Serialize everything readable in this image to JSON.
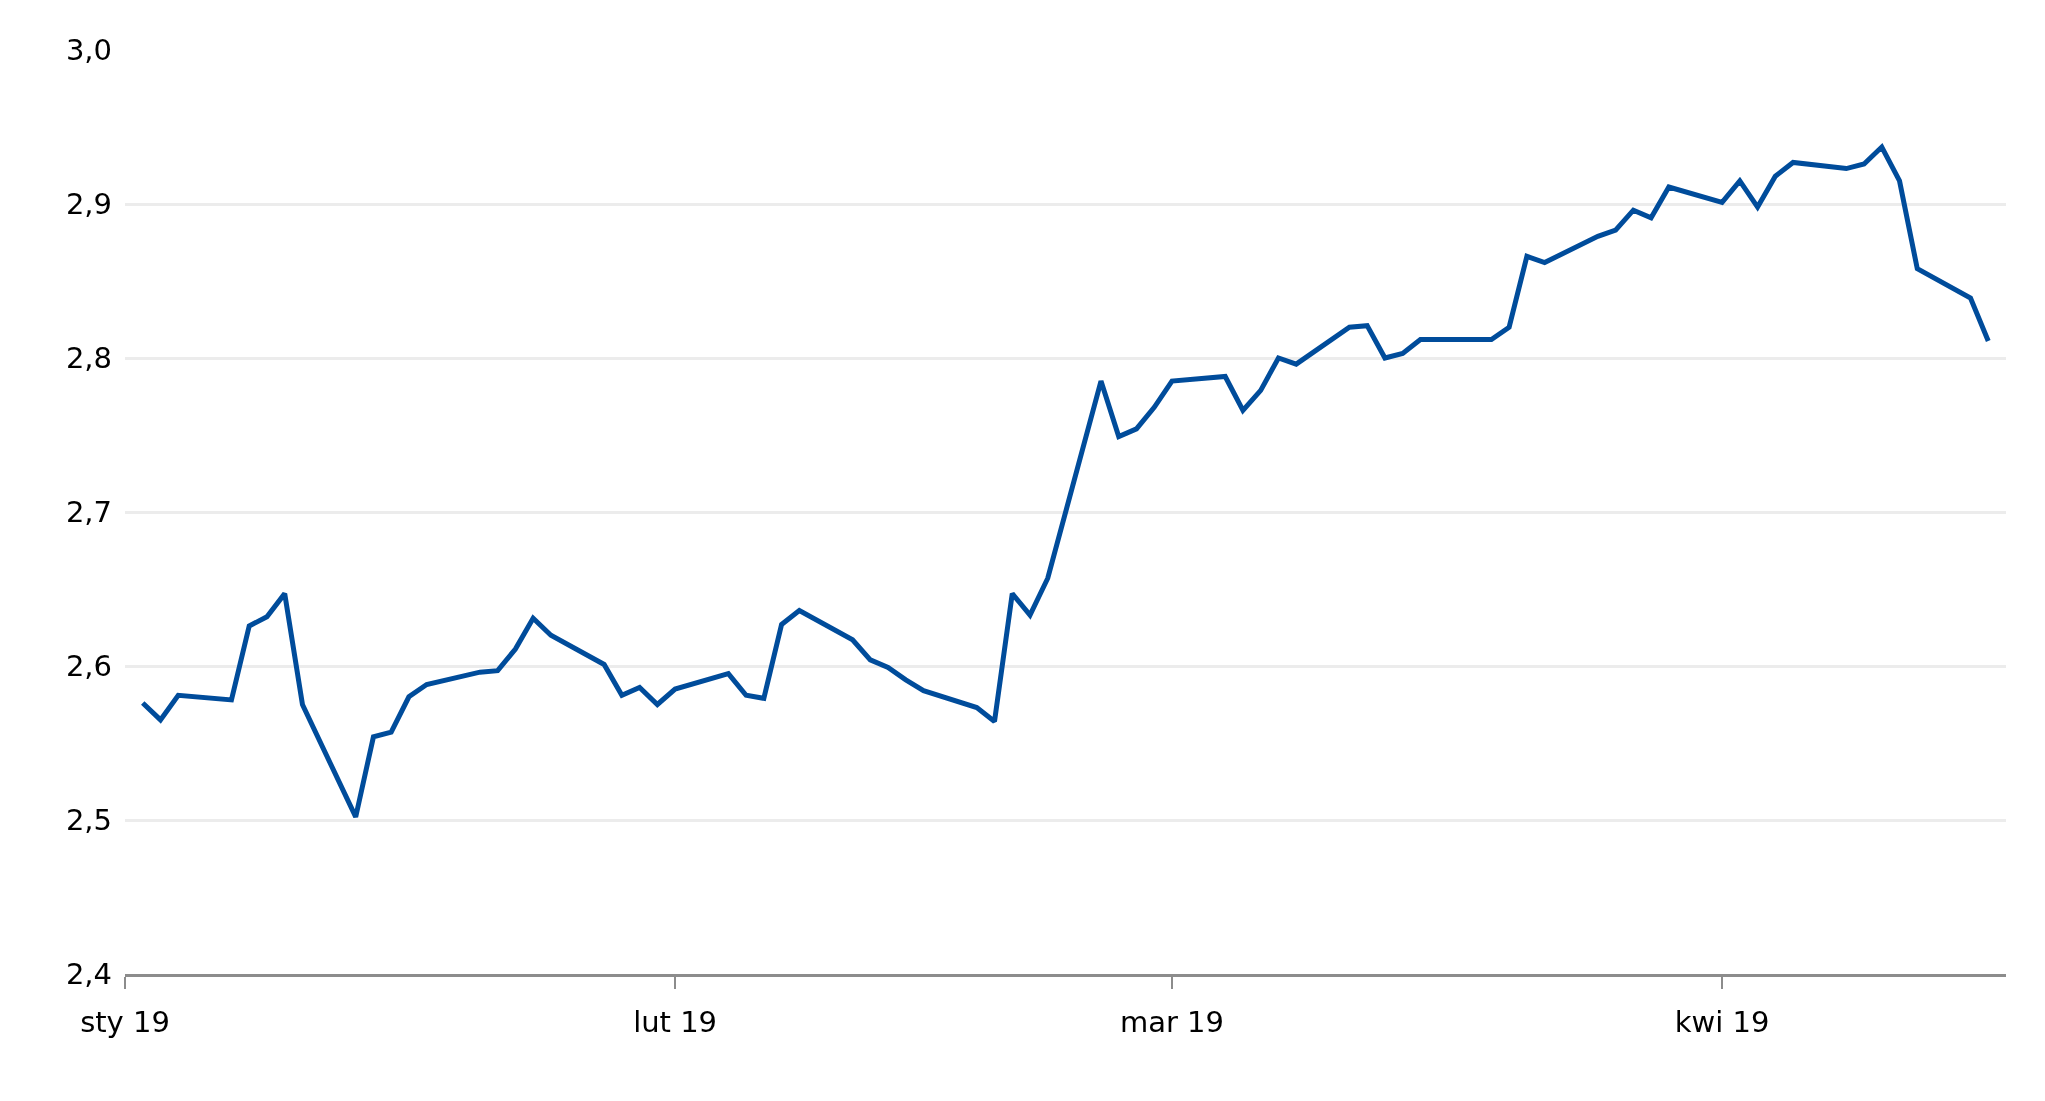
{
  "chart_data": {
    "type": "line",
    "x": [
      "2019-01-02",
      "2019-01-03",
      "2019-01-04",
      "2019-01-07",
      "2019-01-08",
      "2019-01-09",
      "2019-01-10",
      "2019-01-11",
      "2019-01-14",
      "2019-01-15",
      "2019-01-16",
      "2019-01-17",
      "2019-01-18",
      "2019-01-21",
      "2019-01-22",
      "2019-01-23",
      "2019-01-24",
      "2019-01-25",
      "2019-01-28",
      "2019-01-29",
      "2019-01-30",
      "2019-01-31",
      "2019-02-01",
      "2019-02-04",
      "2019-02-05",
      "2019-02-06",
      "2019-02-07",
      "2019-02-08",
      "2019-02-11",
      "2019-02-12",
      "2019-02-13",
      "2019-02-14",
      "2019-02-15",
      "2019-02-18",
      "2019-02-19",
      "2019-02-20",
      "2019-02-21",
      "2019-02-22",
      "2019-02-25",
      "2019-02-26",
      "2019-02-27",
      "2019-02-28",
      "2019-03-01",
      "2019-03-04",
      "2019-03-05",
      "2019-03-06",
      "2019-03-07",
      "2019-03-08",
      "2019-03-11",
      "2019-03-12",
      "2019-03-13",
      "2019-03-14",
      "2019-03-15",
      "2019-03-18",
      "2019-03-19",
      "2019-03-20",
      "2019-03-21",
      "2019-03-22",
      "2019-03-25",
      "2019-03-26",
      "2019-03-27",
      "2019-03-28",
      "2019-03-29",
      "2019-04-01",
      "2019-04-02",
      "2019-04-03",
      "2019-04-04",
      "2019-04-05",
      "2019-04-08",
      "2019-04-09",
      "2019-04-10",
      "2019-04-11",
      "2019-04-12",
      "2019-04-15",
      "2019-04-16"
    ],
    "series": [
      {
        "color": "#004c9b",
        "values": [
          2.576,
          2.565,
          2.581,
          2.578,
          2.626,
          2.632,
          2.647,
          2.575,
          2.502,
          2.554,
          2.557,
          2.58,
          2.588,
          2.596,
          2.597,
          2.611,
          2.631,
          2.62,
          2.601,
          2.581,
          2.586,
          2.575,
          2.585,
          2.595,
          2.581,
          2.579,
          2.627,
          2.636,
          2.617,
          2.604,
          2.599,
          2.591,
          2.584,
          2.573,
          2.564,
          2.647,
          2.633,
          2.657,
          2.785,
          2.749,
          2.754,
          2.768,
          2.785,
          2.788,
          2.766,
          2.779,
          2.8,
          2.796,
          2.82,
          2.821,
          2.8,
          2.803,
          2.812,
          2.812,
          2.812,
          2.82,
          2.866,
          2.862,
          2.879,
          2.883,
          2.896,
          2.891,
          2.911,
          2.901,
          2.915,
          2.898,
          2.918,
          2.927,
          2.923,
          2.926,
          2.937,
          2.915,
          2.858,
          2.839,
          2.811
        ]
      }
    ],
    "xlim": [
      "2019-01-01",
      "2019-04-17"
    ],
    "xticks": [
      {
        "value": "2019-01-01",
        "label": "sty 19"
      },
      {
        "value": "2019-02-01",
        "label": "lut 19"
      },
      {
        "value": "2019-03-01",
        "label": "mar 19"
      },
      {
        "value": "2019-04-01",
        "label": "kwi 19"
      }
    ],
    "ylim": [
      2.4,
      3.0
    ],
    "yticks": [
      {
        "value": 2.4,
        "label": "2,4"
      },
      {
        "value": 2.5,
        "label": "2,5"
      },
      {
        "value": 2.6,
        "label": "2,6"
      },
      {
        "value": 2.7,
        "label": "2,7"
      },
      {
        "value": 2.8,
        "label": "2,8"
      },
      {
        "value": 2.9,
        "label": "2,9"
      },
      {
        "value": 3.0,
        "label": "3,0"
      }
    ],
    "grid": "y",
    "line_style": "solid",
    "marker": "none"
  }
}
